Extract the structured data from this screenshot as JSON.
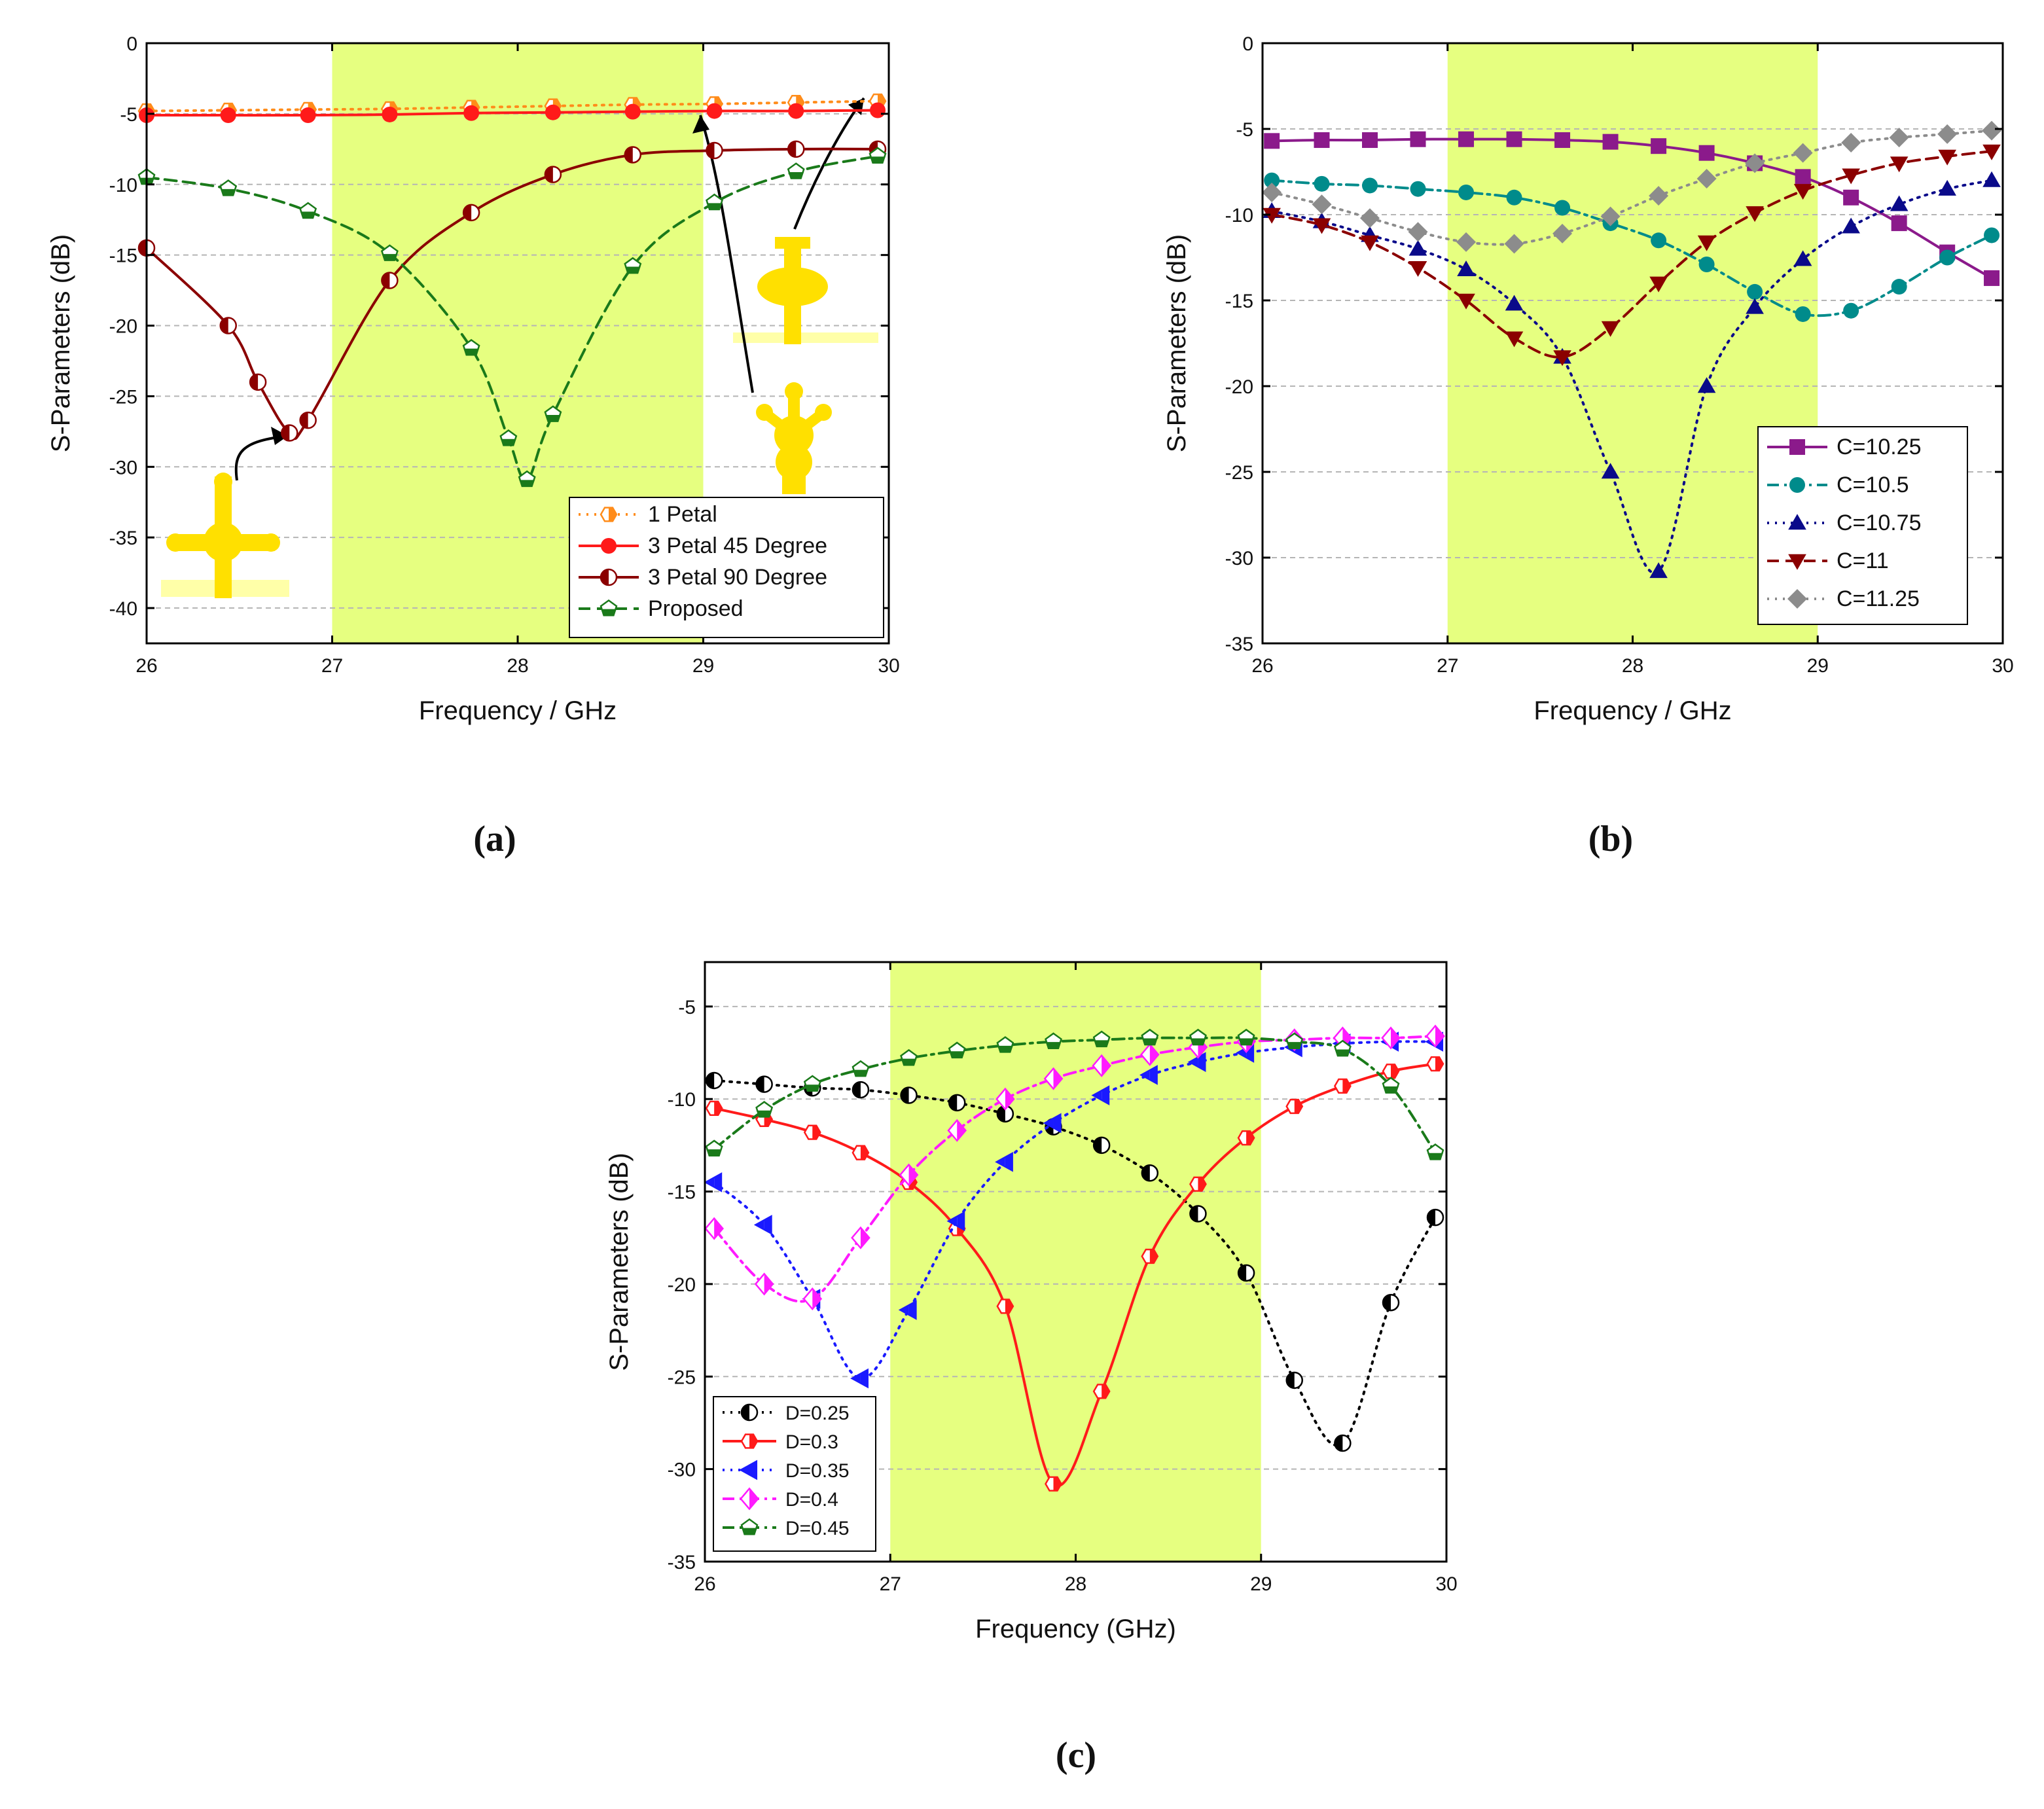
{
  "chart_data": [
    {
      "type": "line",
      "panel_label": "(a)",
      "xlabel": "Frequency / GHz",
      "ylabel": "S-Parameters (dB)",
      "xlim": [
        26,
        30
      ],
      "ylim": [
        -42.5,
        0
      ],
      "xticks": [
        "26",
        "27",
        "28",
        "29",
        "30"
      ],
      "yticks": [
        "0",
        "-5",
        "-10",
        "-15",
        "-20",
        "-25",
        "-30",
        "-35",
        "-40"
      ],
      "highlight_band": [
        27,
        29
      ],
      "highlight_color": "#e6ff80",
      "grid": "horizontal dashed",
      "legend_position": "bottom-right",
      "series": [
        {
          "name": "1 Petal",
          "color": "#ff8c1a",
          "dash": "dot",
          "marker": "hexagon-half",
          "x": [
            26.0,
            26.44,
            26.87,
            27.31,
            27.75,
            28.19,
            28.62,
            29.06,
            29.5,
            29.94
          ],
          "y": [
            -4.8,
            -4.75,
            -4.7,
            -4.65,
            -4.55,
            -4.45,
            -4.35,
            -4.3,
            -4.2,
            -4.1
          ]
        },
        {
          "name": "3 Petal 45 Degree",
          "color": "#ff1a1a",
          "dash": "solid",
          "marker": "circle",
          "x": [
            26.0,
            26.44,
            26.87,
            27.31,
            27.75,
            28.19,
            28.62,
            29.06,
            29.5,
            29.94
          ],
          "y": [
            -5.1,
            -5.1,
            -5.1,
            -5.05,
            -4.95,
            -4.9,
            -4.85,
            -4.8,
            -4.8,
            -4.75
          ]
        },
        {
          "name": "3 Petal 90 Degree",
          "color": "#8b0000",
          "dash": "solid",
          "marker": "circle-half",
          "x": [
            26.0,
            26.44,
            26.6,
            26.77,
            26.87,
            27.31,
            27.75,
            28.19,
            28.62,
            29.06,
            29.5,
            29.94
          ],
          "y": [
            -14.5,
            -20.0,
            -24.0,
            -27.6,
            -26.7,
            -16.8,
            -12.0,
            -9.3,
            -7.9,
            -7.6,
            -7.5,
            -7.5
          ]
        },
        {
          "name": "Proposed",
          "color": "#1a7a1a",
          "dash": "dash",
          "marker": "pentagon-half",
          "x": [
            26.0,
            26.44,
            26.87,
            27.31,
            27.75,
            27.95,
            28.05,
            28.19,
            28.62,
            29.06,
            29.5,
            29.94
          ],
          "y": [
            -9.5,
            -10.3,
            -11.9,
            -14.9,
            -21.6,
            -28.0,
            -30.9,
            -26.3,
            -15.8,
            -11.3,
            -9.1,
            -8.0
          ]
        }
      ],
      "annotations": [
        "inset single-petal antenna shape",
        "inset 3-petal 45 degree shape",
        "inset cross shape (90 degree)"
      ]
    },
    {
      "type": "line",
      "panel_label": "(b)",
      "xlabel": "Frequency / GHz",
      "ylabel": "S-Parameters (dB)",
      "xlim": [
        26,
        30
      ],
      "ylim": [
        -35,
        0
      ],
      "xticks": [
        "26",
        "27",
        "28",
        "29",
        "30"
      ],
      "yticks": [
        "0",
        "-5",
        "-10",
        "-15",
        "-20",
        "-25",
        "-30",
        "-35"
      ],
      "highlight_band": [
        27,
        29
      ],
      "highlight_color": "#e6ff80",
      "grid": "horizontal dashed",
      "legend_position": "bottom-right",
      "series": [
        {
          "name": "C=10.25",
          "color": "#8b1a8b",
          "dash": "solid",
          "marker": "square",
          "x": [
            26.05,
            26.32,
            26.58,
            26.84,
            27.1,
            27.36,
            27.62,
            27.88,
            28.14,
            28.4,
            28.66,
            28.92,
            29.18,
            29.44,
            29.7,
            29.94
          ],
          "y": [
            -5.7,
            -5.65,
            -5.65,
            -5.6,
            -5.6,
            -5.6,
            -5.65,
            -5.75,
            -6.0,
            -6.4,
            -7.0,
            -7.8,
            -9.0,
            -10.5,
            -12.2,
            -13.7
          ]
        },
        {
          "name": "C=10.5",
          "color": "#008b8b",
          "dash": "dashdot",
          "marker": "circle",
          "x": [
            26.05,
            26.32,
            26.58,
            26.84,
            27.1,
            27.36,
            27.62,
            27.88,
            28.14,
            28.4,
            28.66,
            28.92,
            29.18,
            29.44,
            29.7,
            29.94
          ],
          "y": [
            -8.0,
            -8.2,
            -8.3,
            -8.5,
            -8.7,
            -9.0,
            -9.6,
            -10.5,
            -11.5,
            -12.9,
            -14.5,
            -15.8,
            -15.6,
            -14.2,
            -12.5,
            -11.2
          ]
        },
        {
          "name": "C=10.75",
          "color": "#0a0a8a",
          "dash": "dot",
          "marker": "triangle-up",
          "x": [
            26.05,
            26.32,
            26.58,
            26.84,
            27.1,
            27.36,
            27.62,
            27.88,
            28.14,
            28.4,
            28.66,
            28.92,
            29.18,
            29.44,
            29.7,
            29.94
          ],
          "y": [
            -9.8,
            -10.4,
            -11.2,
            -12.0,
            -13.2,
            -15.2,
            -18.3,
            -25.0,
            -30.8,
            -20.0,
            -15.4,
            -12.6,
            -10.7,
            -9.4,
            -8.5,
            -8.0
          ]
        },
        {
          "name": "C=11",
          "color": "#8b0000",
          "dash": "dash",
          "marker": "triangle-down",
          "x": [
            26.05,
            26.32,
            26.58,
            26.84,
            27.1,
            27.36,
            27.62,
            27.88,
            28.14,
            28.4,
            28.66,
            28.92,
            29.18,
            29.44,
            29.7,
            29.94
          ],
          "y": [
            -10.0,
            -10.6,
            -11.6,
            -13.1,
            -15.0,
            -17.2,
            -18.3,
            -16.6,
            -14.0,
            -11.6,
            -9.9,
            -8.6,
            -7.7,
            -7.0,
            -6.6,
            -6.3
          ]
        },
        {
          "name": "C=11.25",
          "color": "#8c8c8c",
          "dash": "dot",
          "marker": "diamond",
          "x": [
            26.05,
            26.32,
            26.58,
            26.84,
            27.1,
            27.36,
            27.62,
            27.88,
            28.14,
            28.4,
            28.66,
            28.92,
            29.18,
            29.44,
            29.7,
            29.94
          ],
          "y": [
            -8.7,
            -9.4,
            -10.2,
            -11.0,
            -11.6,
            -11.7,
            -11.1,
            -10.1,
            -8.9,
            -7.9,
            -7.0,
            -6.4,
            -5.8,
            -5.5,
            -5.3,
            -5.1
          ]
        }
      ]
    },
    {
      "type": "line",
      "panel_label": "(c)",
      "xlabel": "Frequency (GHz)",
      "ylabel": "S-Parameters (dB)",
      "xlim": [
        26,
        30
      ],
      "ylim": [
        -35,
        -2.6
      ],
      "xticks": [
        "26",
        "27",
        "28",
        "29",
        "30"
      ],
      "yticks": [
        "-5",
        "-10",
        "-15",
        "-20",
        "-25",
        "-30",
        "-35"
      ],
      "highlight_band": [
        27,
        29
      ],
      "highlight_color": "#e6ff80",
      "grid": "horizontal dashed",
      "legend_position": "bottom-left",
      "series": [
        {
          "name": "D=0.25",
          "color": "#000000",
          "dash": "dot",
          "marker": "circle-half",
          "x": [
            26.05,
            26.32,
            26.58,
            26.84,
            27.1,
            27.36,
            27.62,
            27.88,
            28.14,
            28.4,
            28.66,
            28.92,
            29.18,
            29.44,
            29.7,
            29.94
          ],
          "y": [
            -9.0,
            -9.2,
            -9.4,
            -9.5,
            -9.8,
            -10.2,
            -10.8,
            -11.5,
            -12.5,
            -14.0,
            -16.2,
            -19.4,
            -25.2,
            -28.6,
            -21.0,
            -16.4
          ]
        },
        {
          "name": "D=0.3",
          "color": "#ff1a1a",
          "dash": "solid",
          "marker": "hexagon-half",
          "x": [
            26.05,
            26.32,
            26.58,
            26.84,
            27.1,
            27.36,
            27.62,
            27.88,
            28.14,
            28.4,
            28.66,
            28.92,
            29.18,
            29.44,
            29.7,
            29.94
          ],
          "y": [
            -10.5,
            -11.1,
            -11.8,
            -12.9,
            -14.5,
            -17.0,
            -21.2,
            -30.8,
            -25.8,
            -18.5,
            -14.6,
            -12.1,
            -10.4,
            -9.3,
            -8.5,
            -8.1
          ]
        },
        {
          "name": "D=0.35",
          "color": "#1a1aff",
          "dash": "dot",
          "marker": "triangle-left",
          "x": [
            26.05,
            26.32,
            26.58,
            26.84,
            27.1,
            27.36,
            27.62,
            27.88,
            28.14,
            28.4,
            28.66,
            28.92,
            29.18,
            29.44,
            29.7,
            29.94
          ],
          "y": [
            -14.5,
            -16.8,
            -20.8,
            -25.1,
            -21.4,
            -16.6,
            -13.4,
            -11.3,
            -9.8,
            -8.7,
            -8.0,
            -7.5,
            -7.2,
            -7.0,
            -6.9,
            -6.9
          ]
        },
        {
          "name": "D=0.4",
          "color": "#ff1aff",
          "dash": "dashdot",
          "marker": "diamond-half",
          "x": [
            26.05,
            26.32,
            26.58,
            26.84,
            27.1,
            27.36,
            27.62,
            27.88,
            28.14,
            28.4,
            28.66,
            28.92,
            29.18,
            29.44,
            29.7,
            29.94
          ],
          "y": [
            -17.0,
            -20.0,
            -20.8,
            -17.5,
            -14.1,
            -11.7,
            -10.0,
            -8.9,
            -8.2,
            -7.6,
            -7.2,
            -6.9,
            -6.8,
            -6.7,
            -6.7,
            -6.6
          ]
        },
        {
          "name": "D=0.45",
          "color": "#1a7a1a",
          "dash": "dashdot",
          "marker": "pentagon-half",
          "x": [
            26.05,
            26.32,
            26.58,
            26.84,
            27.1,
            27.36,
            27.62,
            27.88,
            28.14,
            28.4,
            28.66,
            28.92,
            29.18,
            29.44,
            29.7,
            29.94
          ],
          "y": [
            -12.7,
            -10.6,
            -9.2,
            -8.4,
            -7.8,
            -7.4,
            -7.1,
            -6.9,
            -6.8,
            -6.7,
            -6.7,
            -6.7,
            -6.9,
            -7.3,
            -9.3,
            -12.9
          ]
        }
      ]
    }
  ]
}
